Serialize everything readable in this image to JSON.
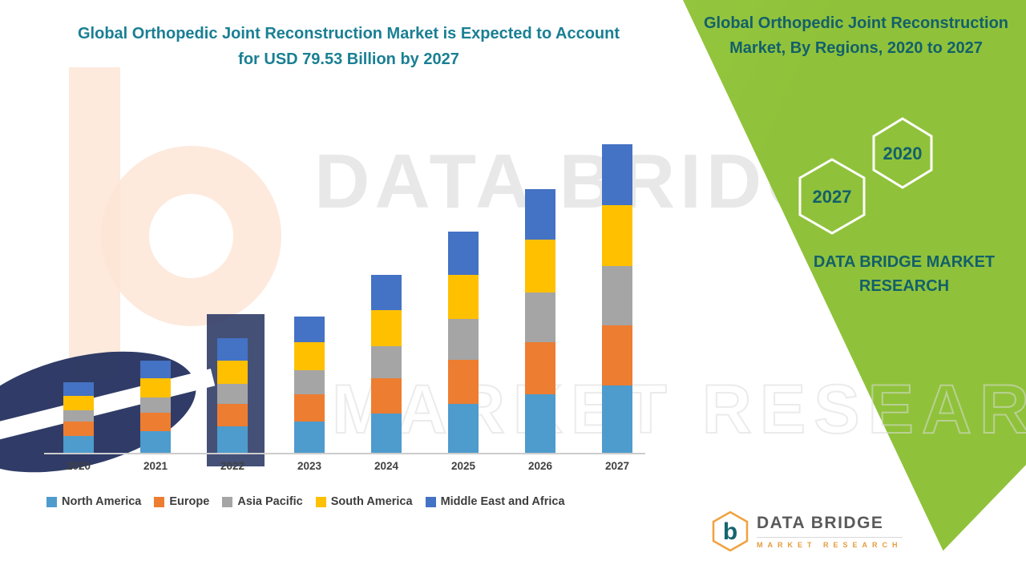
{
  "header": {
    "title": "Global Orthopedic Joint Reconstruction Market is Expected to Account for USD 79.53 Billion by 2027"
  },
  "side_panel": {
    "title": "Global Orthopedic Joint Reconstruction Market, By Regions, 2020 to 2027",
    "hexagon_back_label": "2020",
    "hexagon_front_label": "2027",
    "brand": "DATA BRIDGE MARKET RESEARCH",
    "colors": {
      "panel_green": "#8fc23a",
      "panel_green_light": "#a8d14f",
      "text_teal": "#13606a"
    }
  },
  "watermark": {
    "line1": "DATA BRIDGE",
    "line2": "MARKET RESEARCH"
  },
  "footer_logo": {
    "glyph": "b",
    "name": "DATA BRIDGE",
    "tagline": "MARKET RESEARCH"
  },
  "chart_data": {
    "type": "bar",
    "stacked": true,
    "title": "Global Orthopedic Joint Reconstruction Market is Expected to Account for USD 79.53 Billion by 2027",
    "units": "USD Billion (values estimated from bar heights; 2027 total = 79.53)",
    "categories": [
      "2020",
      "2021",
      "2022",
      "2023",
      "2024",
      "2025",
      "2026",
      "2027"
    ],
    "series": [
      {
        "name": "North America",
        "color": "#4e9bcd",
        "values": [
          4.3,
          5.5,
          6.8,
          8.0,
          10.2,
          12.6,
          15.0,
          17.3
        ]
      },
      {
        "name": "Europe",
        "color": "#ed7d31",
        "values": [
          3.7,
          4.8,
          5.9,
          7.0,
          9.1,
          11.3,
          13.5,
          15.6
        ]
      },
      {
        "name": "Asia Pacific",
        "color": "#a5a5a5",
        "values": [
          2.9,
          4.0,
          5.1,
          6.3,
          8.3,
          10.6,
          12.8,
          15.3
        ]
      },
      {
        "name": "South America",
        "color": "#ffc000",
        "values": [
          3.7,
          4.9,
          6.0,
          7.2,
          9.2,
          11.5,
          13.6,
          15.7
        ]
      },
      {
        "name": "Middle East and Africa",
        "color": "#4472c4",
        "values": [
          3.5,
          4.5,
          5.7,
          6.7,
          9.0,
          11.0,
          13.1,
          15.63
        ]
      }
    ],
    "totals": [
      18.1,
      23.7,
      29.5,
      35.2,
      45.8,
      57.0,
      68.0,
      79.53
    ],
    "xlabel": "",
    "ylabel": "",
    "ylim": [
      0,
      80
    ],
    "grid": false,
    "legend_position": "bottom"
  }
}
